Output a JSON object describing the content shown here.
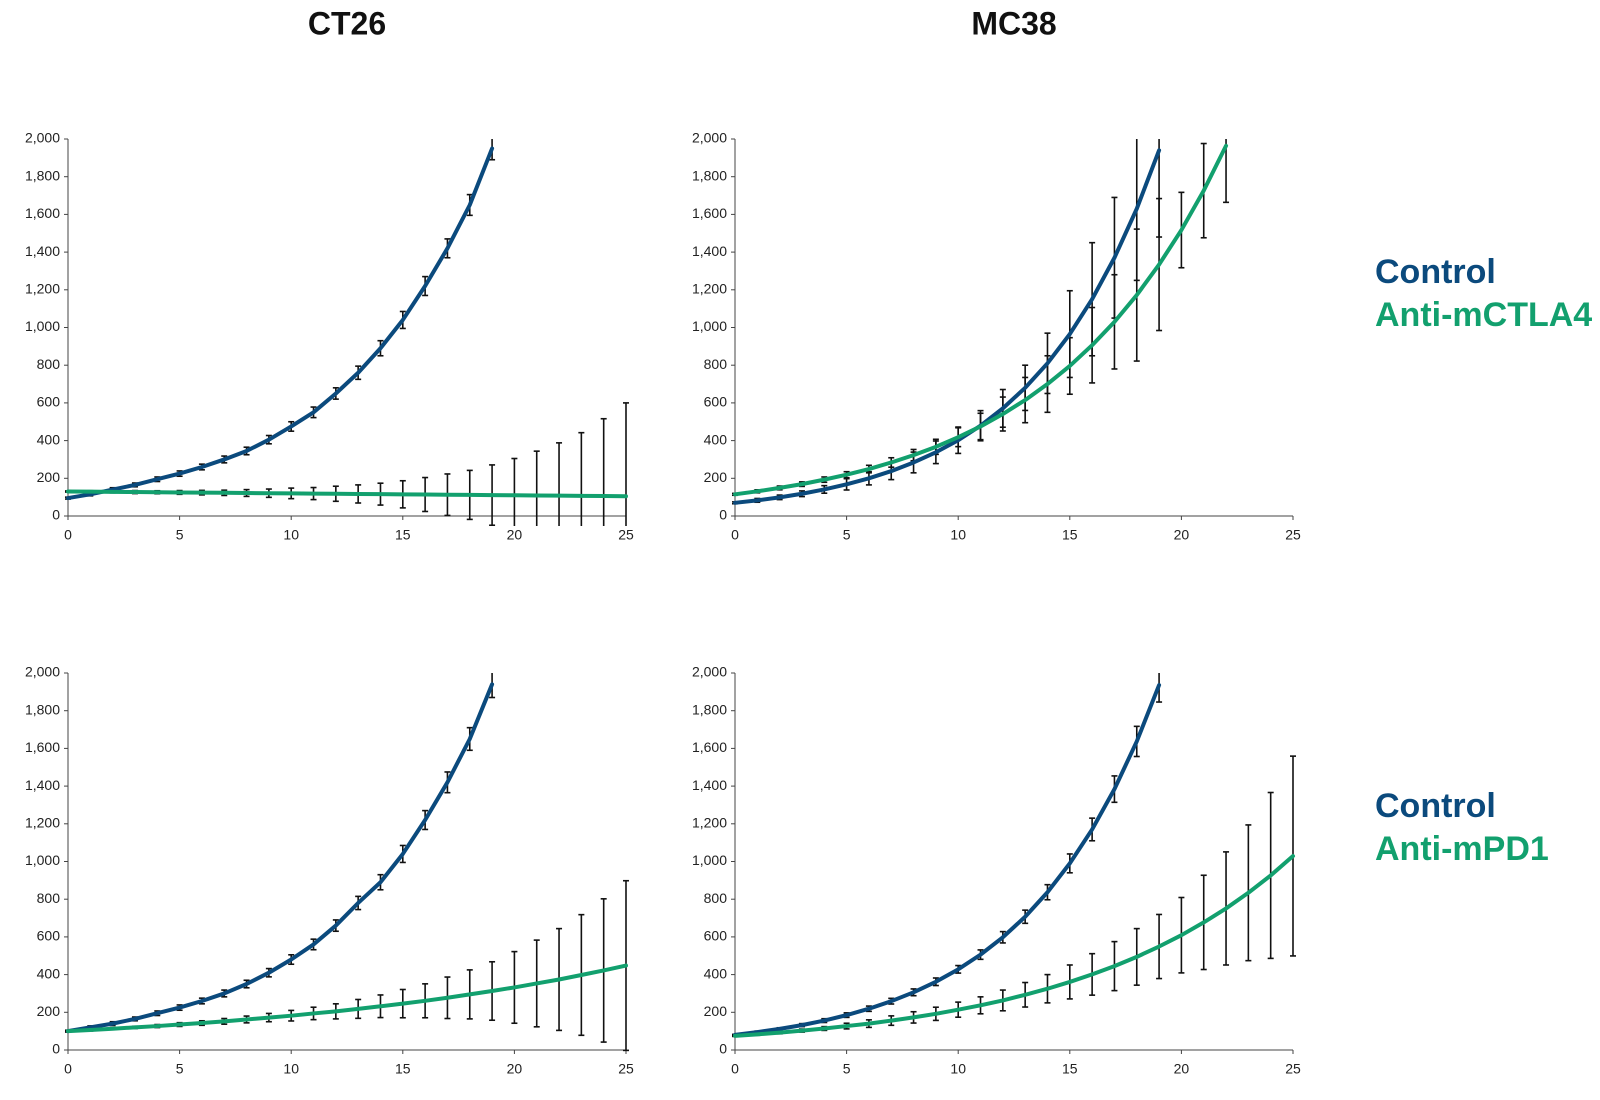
{
  "chart_data": [
    {
      "type": "line",
      "title": "CT26",
      "xlim": [
        0,
        25
      ],
      "ylim": [
        0,
        2000
      ],
      "xticks": [
        0,
        5,
        10,
        15,
        20,
        25
      ],
      "yticks": [
        0,
        200,
        400,
        600,
        800,
        {
          "value": 1000,
          "label": "1,000"
        },
        {
          "value": 1200,
          "label": "1,200"
        },
        {
          "value": 1400,
          "label": "1,400"
        },
        {
          "value": 1600,
          "label": "1,600"
        },
        {
          "value": 1800,
          "label": "1,800"
        },
        {
          "value": 2000,
          "label": "2,000"
        }
      ],
      "series": [
        {
          "name": "Control",
          "color": "#0b4a7d",
          "x": [
            0,
            1,
            2,
            3,
            4,
            5,
            6,
            7,
            8,
            9,
            10,
            11,
            12,
            13,
            14,
            15,
            16,
            17,
            18,
            19
          ],
          "values": [
            95,
            115,
            140,
            165,
            195,
            225,
            260,
            300,
            345,
            405,
            475,
            550,
            650,
            760,
            890,
            1040,
            1220,
            1420,
            1650,
            1950
          ],
          "errors": [
            5,
            8,
            10,
            10,
            12,
            14,
            15,
            18,
            20,
            22,
            25,
            28,
            30,
            35,
            40,
            45,
            50,
            50,
            55,
            60
          ]
        },
        {
          "name": "Anti-mCTLA4",
          "color": "#12a06e",
          "x": [
            0,
            1,
            2,
            3,
            4,
            5,
            6,
            7,
            8,
            9,
            10,
            11,
            12,
            13,
            14,
            15,
            16,
            17,
            18,
            19,
            20,
            21,
            22,
            23,
            24,
            25
          ],
          "values": [
            130,
            129,
            128,
            127,
            126,
            125,
            124,
            123,
            122,
            121,
            120,
            119,
            118,
            117,
            116,
            115,
            114,
            113,
            112,
            111,
            110,
            109,
            108,
            107,
            106,
            105
          ],
          "errors": [
            3,
            5,
            5,
            8,
            8,
            10,
            12,
            14,
            18,
            22,
            28,
            32,
            40,
            48,
            58,
            72,
            90,
            110,
            130,
            160,
            195,
            235,
            280,
            335,
            410,
            495
          ]
        }
      ]
    },
    {
      "type": "line",
      "title": "MC38",
      "xlim": [
        0,
        25
      ],
      "ylim": [
        0,
        2000
      ],
      "legend": "right",
      "xticks": [
        0,
        5,
        10,
        15,
        20,
        25
      ],
      "yticks": [
        0,
        200,
        400,
        600,
        800,
        {
          "value": 1000,
          "label": "1,000"
        },
        {
          "value": 1200,
          "label": "1,200"
        },
        {
          "value": 1400,
          "label": "1,400"
        },
        {
          "value": 1600,
          "label": "1,600"
        },
        {
          "value": 1800,
          "label": "1,800"
        },
        {
          "value": 2000,
          "label": "2,000"
        }
      ],
      "series": [
        {
          "name": "Control",
          "color": "#0b4a7d",
          "x": [
            0,
            1,
            2,
            3,
            4,
            5,
            6,
            7,
            8,
            9,
            10,
            11,
            12,
            13,
            14,
            15,
            16,
            17,
            18,
            19
          ],
          "values": [
            70,
            83,
            99,
            118,
            141,
            168,
            200,
            238,
            284,
            338,
            402,
            479,
            571,
            680,
            810,
            965,
            1150,
            1370,
            1630,
            1940
          ],
          "errors": [
            5,
            10,
            12,
            15,
            20,
            30,
            35,
            45,
            55,
            60,
            70,
            80,
            100,
            120,
            160,
            230,
            300,
            320,
            380,
            460
          ]
        },
        {
          "name": "Anti-mCTLA4",
          "color": "#12a06e",
          "x": [
            0,
            1,
            2,
            3,
            4,
            5,
            6,
            7,
            8,
            9,
            10,
            11,
            12,
            13,
            14,
            15,
            16,
            17,
            18,
            19,
            20,
            21,
            22
          ],
          "values": [
            115,
            131,
            149,
            169,
            193,
            219,
            249,
            284,
            323,
            367,
            418,
            475,
            541,
            615,
            700,
            796,
            906,
            1030,
            1172,
            1334,
            1517,
            1726,
            1964
          ],
          "errors": [
            5,
            8,
            10,
            12,
            14,
            16,
            20,
            25,
            30,
            40,
            50,
            70,
            90,
            120,
            150,
            150,
            200,
            250,
            350,
            350,
            200,
            250,
            300
          ]
        }
      ]
    },
    {
      "type": "line",
      "xlim": [
        0,
        25
      ],
      "ylim": [
        0,
        2000
      ],
      "xticks": [
        0,
        5,
        10,
        15,
        20,
        25
      ],
      "yticks": [
        0,
        200,
        400,
        600,
        800,
        {
          "value": 1000,
          "label": "1,000"
        },
        {
          "value": 1200,
          "label": "1,200"
        },
        {
          "value": 1400,
          "label": "1,400"
        },
        {
          "value": 1600,
          "label": "1,600"
        },
        {
          "value": 1800,
          "label": "1,800"
        },
        {
          "value": 2000,
          "label": "2,000"
        }
      ],
      "series": [
        {
          "name": "Control",
          "color": "#0b4a7d",
          "x": [
            0,
            1,
            2,
            3,
            4,
            5,
            6,
            7,
            8,
            9,
            10,
            11,
            12,
            13,
            14,
            15,
            16,
            17,
            18,
            19
          ],
          "values": [
            100,
            120,
            140,
            165,
            195,
            225,
            260,
            300,
            350,
            410,
            480,
            560,
            660,
            780,
            890,
            1040,
            1220,
            1420,
            1650,
            1940
          ],
          "errors": [
            5,
            8,
            10,
            10,
            12,
            14,
            15,
            18,
            20,
            22,
            25,
            28,
            30,
            35,
            40,
            45,
            50,
            55,
            60,
            70
          ]
        },
        {
          "name": "Anti-mPD1",
          "color": "#12a06e",
          "x": [
            0,
            1,
            2,
            3,
            4,
            5,
            6,
            7,
            8,
            9,
            10,
            11,
            12,
            13,
            14,
            15,
            16,
            17,
            18,
            19,
            20,
            21,
            22,
            23,
            24,
            25
          ],
          "values": [
            100,
            106,
            113,
            120,
            127,
            135,
            143,
            152,
            162,
            172,
            182,
            194,
            205,
            218,
            232,
            246,
            261,
            277,
            295,
            313,
            332,
            353,
            374,
            398,
            422,
            448
          ],
          "errors": [
            3,
            5,
            5,
            6,
            8,
            10,
            12,
            15,
            18,
            22,
            28,
            33,
            40,
            50,
            60,
            75,
            90,
            110,
            130,
            155,
            190,
            230,
            270,
            320,
            380,
            450
          ]
        }
      ]
    },
    {
      "type": "line",
      "xlim": [
        0,
        25
      ],
      "ylim": [
        0,
        2000
      ],
      "legend": "right",
      "xticks": [
        0,
        5,
        10,
        15,
        20,
        25
      ],
      "yticks": [
        0,
        200,
        400,
        600,
        800,
        {
          "value": 1000,
          "label": "1,000"
        },
        {
          "value": 1200,
          "label": "1,200"
        },
        {
          "value": 1400,
          "label": "1,400"
        },
        {
          "value": 1600,
          "label": "1,600"
        },
        {
          "value": 1800,
          "label": "1,800"
        },
        {
          "value": 2000,
          "label": "2,000"
        }
      ],
      "series": [
        {
          "name": "Control",
          "color": "#0b4a7d",
          "x": [
            0,
            1,
            2,
            3,
            4,
            5,
            6,
            7,
            8,
            9,
            10,
            11,
            12,
            13,
            14,
            15,
            16,
            17,
            18,
            19
          ],
          "values": [
            80,
            95,
            112,
            132,
            156,
            185,
            219,
            259,
            306,
            362,
            428,
            506,
            598,
            707,
            837,
            990,
            1170,
            1384,
            1637,
            1936
          ],
          "errors": [
            3,
            5,
            6,
            8,
            10,
            12,
            14,
            15,
            18,
            20,
            20,
            25,
            30,
            35,
            40,
            50,
            60,
            70,
            80,
            90
          ]
        },
        {
          "name": "Anti-mPD1",
          "color": "#12a06e",
          "x": [
            0,
            1,
            2,
            3,
            4,
            5,
            6,
            7,
            8,
            9,
            10,
            11,
            12,
            13,
            14,
            15,
            16,
            17,
            18,
            19,
            20,
            21,
            22,
            23,
            24,
            25
          ],
          "values": [
            75,
            83,
            92,
            103,
            114,
            127,
            140,
            156,
            173,
            192,
            214,
            237,
            263,
            293,
            325,
            361,
            401,
            445,
            494,
            549,
            609,
            677,
            751,
            834,
            926,
            1029
          ],
          "errors": [
            3,
            5,
            6,
            8,
            10,
            15,
            20,
            25,
            30,
            35,
            40,
            45,
            55,
            65,
            75,
            90,
            110,
            130,
            150,
            170,
            200,
            250,
            300,
            360,
            440,
            530
          ]
        }
      ]
    }
  ]
}
